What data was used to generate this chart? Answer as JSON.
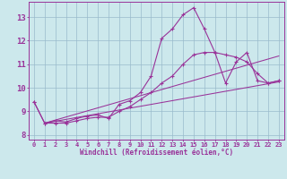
{
  "bg_color": "#cce8ec",
  "grid_color": "#99bbcc",
  "line_color": "#993399",
  "xlabel": "Windchill (Refroidissement éolien,°C)",
  "x_ticks": [
    0,
    1,
    2,
    3,
    4,
    5,
    6,
    7,
    8,
    9,
    10,
    11,
    12,
    13,
    14,
    15,
    16,
    17,
    18,
    19,
    20,
    21,
    22,
    23
  ],
  "y_ticks": [
    8,
    9,
    10,
    11,
    12,
    13
  ],
  "xlim": [
    -0.5,
    23.5
  ],
  "ylim": [
    7.8,
    13.65
  ],
  "line1_x": [
    0,
    1,
    2,
    3,
    4,
    5,
    6,
    7,
    8,
    9,
    10,
    11,
    12,
    13,
    14,
    15,
    16,
    17,
    18,
    19,
    20,
    21,
    22,
    23
  ],
  "line1_y": [
    9.4,
    8.5,
    8.6,
    8.55,
    8.7,
    8.8,
    8.85,
    8.7,
    9.3,
    9.45,
    9.8,
    10.5,
    12.1,
    12.5,
    13.1,
    13.4,
    12.5,
    11.5,
    10.2,
    11.1,
    11.5,
    10.3,
    10.2,
    10.3
  ],
  "line2_x": [
    0,
    1,
    2,
    3,
    4,
    5,
    6,
    7,
    8,
    9,
    10,
    11,
    12,
    13,
    14,
    15,
    16,
    17,
    18,
    19,
    20,
    21,
    22,
    23
  ],
  "line2_y": [
    9.4,
    8.5,
    8.5,
    8.5,
    8.6,
    8.7,
    8.75,
    8.75,
    9.0,
    9.2,
    9.5,
    9.8,
    10.2,
    10.5,
    11.0,
    11.4,
    11.5,
    11.5,
    11.4,
    11.3,
    11.1,
    10.6,
    10.2,
    10.3
  ],
  "line3_x": [
    1,
    23
  ],
  "line3_y": [
    8.5,
    10.25
  ],
  "line4_x": [
    1,
    23
  ],
  "line4_y": [
    8.5,
    11.35
  ]
}
